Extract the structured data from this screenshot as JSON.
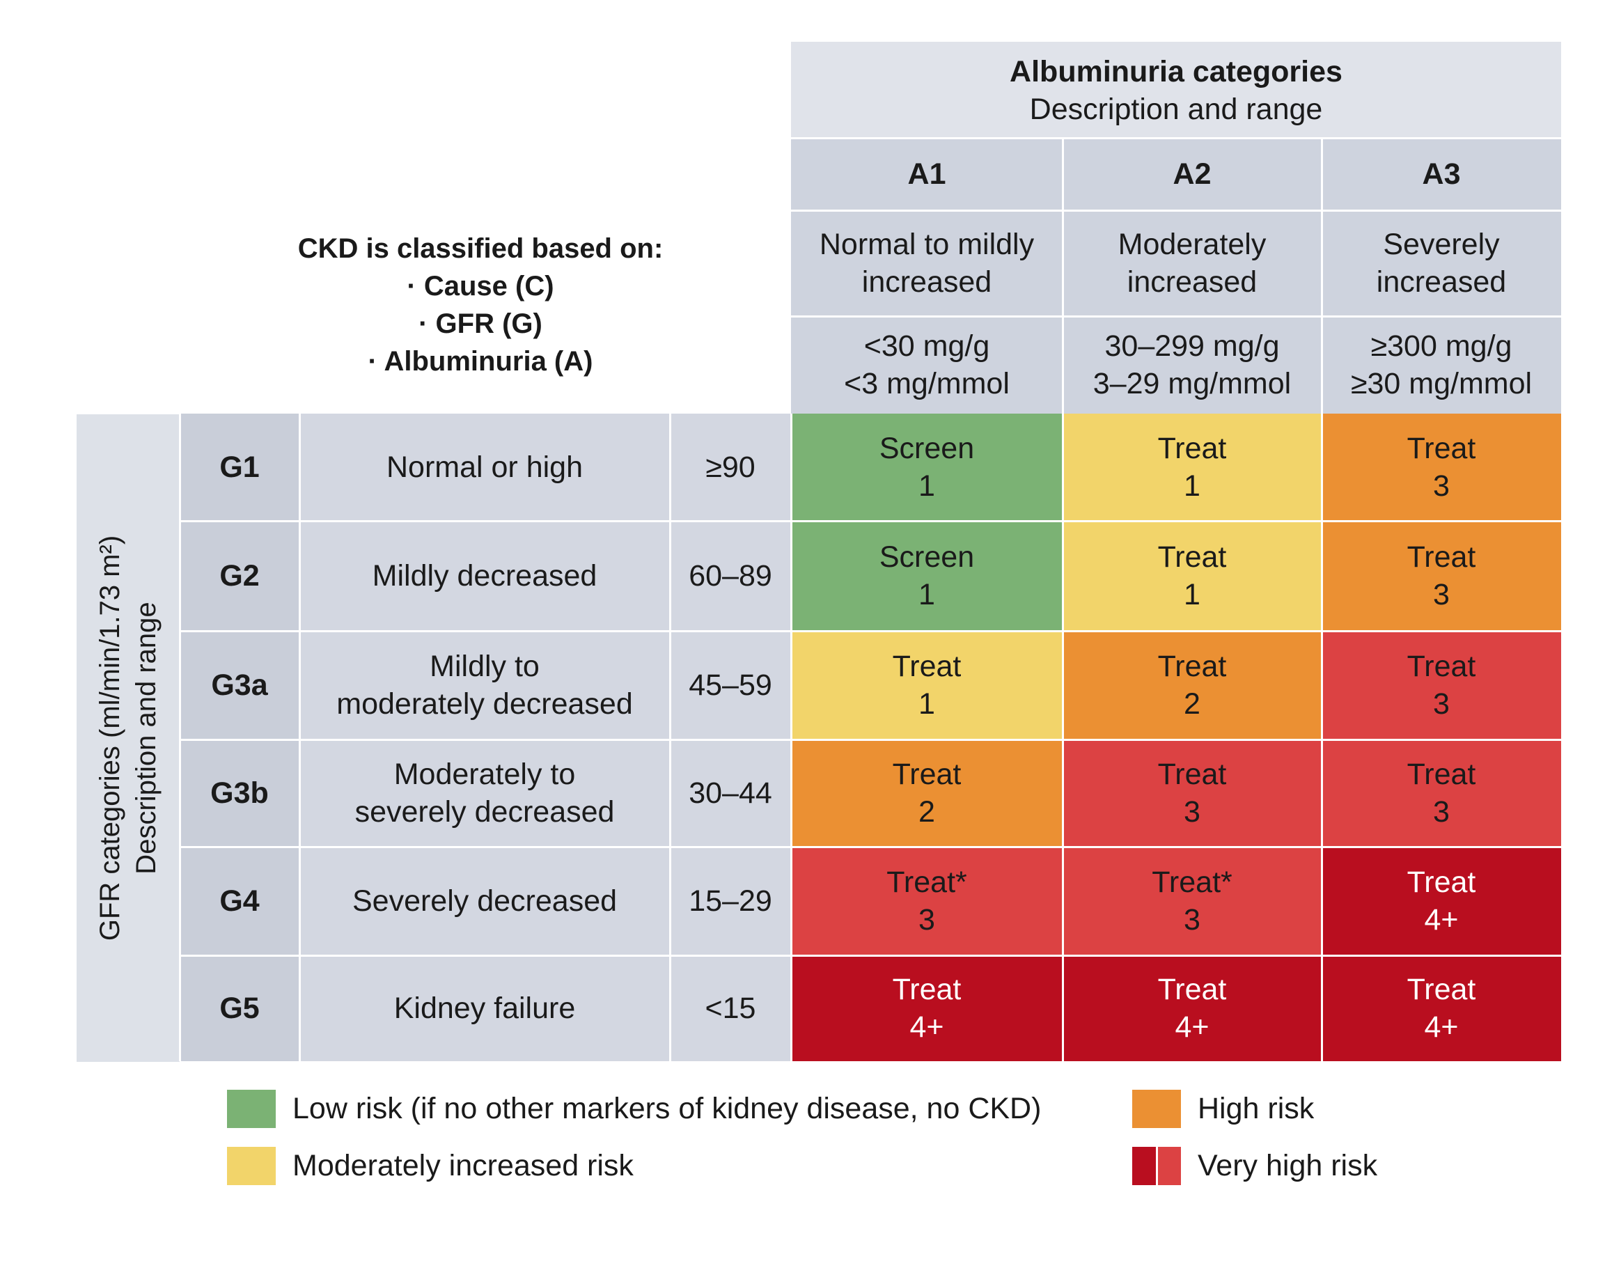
{
  "colors": {
    "low": "#7bb274",
    "moderate": "#f2d46a",
    "high": "#eb9033",
    "very_high_light": "#dc4243",
    "very_high_dark": "#b90e1f"
  },
  "classified": {
    "title": "CKD is classified based on:",
    "items": [
      "· Cause (C)",
      "· GFR (G)",
      "· Albuminuria (A)"
    ]
  },
  "albuminuria": {
    "title": "Albuminuria categories",
    "subtitle": "Description and range",
    "columns": [
      {
        "code": "A1",
        "desc": [
          "Normal to mildly",
          "increased"
        ],
        "range": [
          "<30 mg/g",
          "<3 mg/mmol"
        ]
      },
      {
        "code": "A2",
        "desc": [
          "Moderately",
          "increased"
        ],
        "range": [
          "30–299 mg/g",
          "3–29 mg/mmol"
        ]
      },
      {
        "code": "A3",
        "desc": [
          "Severely",
          "increased"
        ],
        "range": [
          "≥300 mg/g",
          "≥30 mg/mmol"
        ]
      }
    ]
  },
  "gfr": {
    "label_line1": "GFR categories (ml/min/1.73 m²)",
    "label_line2": "Description and range",
    "rows": [
      {
        "code": "G1",
        "desc": [
          "Normal or high"
        ],
        "range": "≥90"
      },
      {
        "code": "G2",
        "desc": [
          "Mildly decreased"
        ],
        "range": "60–89"
      },
      {
        "code": "G3a",
        "desc": [
          "Mildly to",
          "moderately decreased"
        ],
        "range": "45–59"
      },
      {
        "code": "G3b",
        "desc": [
          "Moderately to",
          "severely decreased"
        ],
        "range": "30–44"
      },
      {
        "code": "G4",
        "desc": [
          "Severely decreased"
        ],
        "range": "15–29"
      },
      {
        "code": "G5",
        "desc": [
          "Kidney failure"
        ],
        "range": "<15"
      }
    ]
  },
  "grid": [
    [
      {
        "action": "Screen",
        "level": "1",
        "risk": "low"
      },
      {
        "action": "Treat",
        "level": "1",
        "risk": "moderate"
      },
      {
        "action": "Treat",
        "level": "3",
        "risk": "high"
      }
    ],
    [
      {
        "action": "Screen",
        "level": "1",
        "risk": "low"
      },
      {
        "action": "Treat",
        "level": "1",
        "risk": "moderate"
      },
      {
        "action": "Treat",
        "level": "3",
        "risk": "high"
      }
    ],
    [
      {
        "action": "Treat",
        "level": "1",
        "risk": "moderate"
      },
      {
        "action": "Treat",
        "level": "2",
        "risk": "high"
      },
      {
        "action": "Treat",
        "level": "3",
        "risk": "very_high_light"
      }
    ],
    [
      {
        "action": "Treat",
        "level": "2",
        "risk": "high"
      },
      {
        "action": "Treat",
        "level": "3",
        "risk": "very_high_light"
      },
      {
        "action": "Treat",
        "level": "3",
        "risk": "very_high_light"
      }
    ],
    [
      {
        "action": "Treat*",
        "level": "3",
        "risk": "very_high_light"
      },
      {
        "action": "Treat*",
        "level": "3",
        "risk": "very_high_light"
      },
      {
        "action": "Treat",
        "level": "4+",
        "risk": "very_high_dark"
      }
    ],
    [
      {
        "action": "Treat",
        "level": "4+",
        "risk": "very_high_dark"
      },
      {
        "action": "Treat",
        "level": "4+",
        "risk": "very_high_dark"
      },
      {
        "action": "Treat",
        "level": "4+",
        "risk": "very_high_dark"
      }
    ]
  ],
  "legend": {
    "low": "Low risk (if no other markers of kidney disease, no CKD)",
    "moderate": "Moderately increased risk",
    "high": "High risk",
    "very_high": "Very high risk"
  }
}
